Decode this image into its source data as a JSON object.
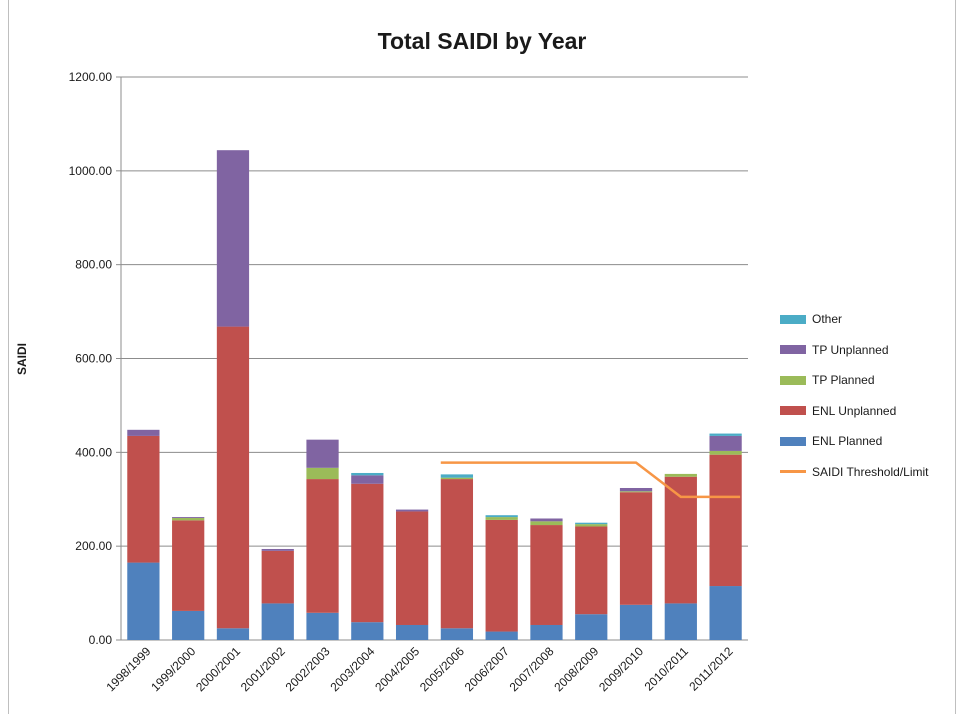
{
  "chart_data": {
    "type": "bar",
    "stacked": true,
    "title": "Total SAIDI by Year",
    "ylabel": "SAIDI",
    "xlabel": "",
    "ylim": [
      0,
      1200
    ],
    "yticks": [
      "0.00",
      "200.00",
      "400.00",
      "600.00",
      "800.00",
      "1000.00",
      "1200.00"
    ],
    "grid": true,
    "legend_position": "right",
    "categories": [
      "1998/1999",
      "1999/2000",
      "2000/2001",
      "2001/2002",
      "2002/2003",
      "2003/2004",
      "2004/2005",
      "2005/2006",
      "2006/2007",
      "2007/2008",
      "2008/2009",
      "2009/2010",
      "2010/2011",
      "2011/2012"
    ],
    "series": [
      {
        "name": "ENL Planned",
        "color": "#4f81bd",
        "values": [
          165,
          62,
          25,
          78,
          58,
          38,
          32,
          25,
          18,
          32,
          55,
          75,
          78,
          115
        ]
      },
      {
        "name": "ENL Unplanned",
        "color": "#c0504d",
        "values": [
          270,
          193,
          643,
          112,
          285,
          295,
          242,
          318,
          238,
          213,
          187,
          240,
          270,
          280
        ]
      },
      {
        "name": "TP Planned",
        "color": "#9bbb59",
        "values": [
          0,
          5,
          0,
          0,
          24,
          0,
          0,
          3,
          6,
          8,
          5,
          2,
          6,
          8
        ]
      },
      {
        "name": "TP Unplanned",
        "color": "#8064a2",
        "values": [
          13,
          2,
          376,
          4,
          60,
          18,
          4,
          0,
          0,
          6,
          0,
          7,
          0,
          32
        ]
      },
      {
        "name": "Other",
        "color": "#4bacc6",
        "values": [
          0,
          0,
          0,
          0,
          0,
          5,
          0,
          7,
          4,
          0,
          3,
          0,
          0,
          5
        ]
      }
    ],
    "line_series": {
      "name": "SAIDI Threshold/Limit",
      "color": "#f79646",
      "points": [
        {
          "x": "2005/2006",
          "y": 378
        },
        {
          "x": "2009/2010",
          "y": 378
        },
        {
          "x": "2010/2011",
          "y": 305
        },
        {
          "x": "2011/2012",
          "y": 305
        }
      ]
    },
    "legend_order": [
      "Other",
      "TP Unplanned",
      "TP Planned",
      "ENL Unplanned",
      "ENL Planned",
      "SAIDI Threshold/Limit"
    ]
  }
}
